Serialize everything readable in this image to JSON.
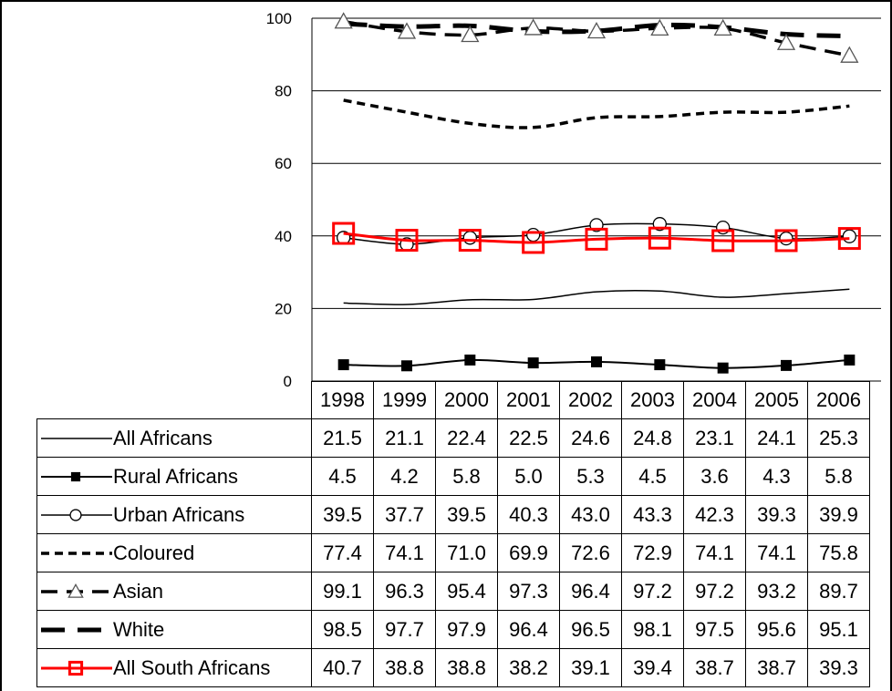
{
  "chart_data": {
    "type": "line",
    "title": "",
    "xlabel": "",
    "ylabel": "",
    "ylim": [
      0,
      100
    ],
    "yticks": [
      0,
      20,
      40,
      60,
      80,
      100
    ],
    "grid": "horizontal",
    "legend": "table-below",
    "categories": [
      "1998",
      "1999",
      "2000",
      "2001",
      "2002",
      "2003",
      "2004",
      "2005",
      "2006"
    ],
    "series": [
      {
        "name": "All Africans",
        "style": "thin-solid",
        "color": "#000000",
        "values": [
          21.5,
          21.1,
          22.4,
          22.5,
          24.6,
          24.8,
          23.1,
          24.1,
          25.3
        ],
        "display": [
          "21.5",
          "21.1",
          "22.4",
          "22.5",
          "24.6",
          "24.8",
          "23.1",
          "24.1",
          "25.3"
        ]
      },
      {
        "name": "Rural Africans",
        "style": "solid-filled-square",
        "color": "#000000",
        "values": [
          4.5,
          4.2,
          5.8,
          5.0,
          5.3,
          4.5,
          3.6,
          4.3,
          5.8
        ],
        "display": [
          "4.5",
          "4.2",
          "5.8",
          "5.0",
          "5.3",
          "4.5",
          "3.6",
          "4.3",
          "5.8"
        ]
      },
      {
        "name": "Urban Africans",
        "style": "thin-open-circle",
        "color": "#000000",
        "values": [
          39.5,
          37.7,
          39.5,
          40.3,
          43.0,
          43.3,
          42.3,
          39.3,
          39.9
        ],
        "display": [
          "39.5",
          "37.7",
          "39.5",
          "40.3",
          "43.0",
          "43.3",
          "42.3",
          "39.3",
          "39.9"
        ]
      },
      {
        "name": "Coloured",
        "style": "short-dash",
        "color": "#000000",
        "values": [
          77.4,
          74.1,
          71.0,
          69.9,
          72.6,
          72.9,
          74.1,
          74.1,
          75.8
        ],
        "display": [
          "77.4",
          "74.1",
          "71.0",
          "69.9",
          "72.6",
          "72.9",
          "74.1",
          "74.1",
          "75.8"
        ]
      },
      {
        "name": "Asian",
        "style": "dash-open-triangle",
        "color": "#000000",
        "values": [
          99.1,
          96.3,
          95.4,
          97.3,
          96.4,
          97.2,
          97.2,
          93.2,
          89.7
        ],
        "display": [
          "99.1",
          "96.3",
          "95.4",
          "97.3",
          "96.4",
          "97.2",
          "97.2",
          "93.2",
          "89.7"
        ]
      },
      {
        "name": "White",
        "style": "long-dash",
        "color": "#000000",
        "values": [
          98.5,
          97.7,
          97.9,
          96.4,
          96.5,
          98.1,
          97.5,
          95.6,
          95.1
        ],
        "display": [
          "98.5",
          "97.7",
          "97.9",
          "96.4",
          "96.5",
          "98.1",
          "97.5",
          "95.6",
          "95.1"
        ]
      },
      {
        "name": "All South Africans",
        "style": "red-open-square",
        "color": "#ff0000",
        "values": [
          40.7,
          38.8,
          38.8,
          38.2,
          39.1,
          39.4,
          38.7,
          38.7,
          39.3
        ],
        "display": [
          "40.7",
          "38.8",
          "38.8",
          "38.2",
          "39.1",
          "39.4",
          "38.7",
          "38.7",
          "39.3"
        ]
      }
    ]
  }
}
